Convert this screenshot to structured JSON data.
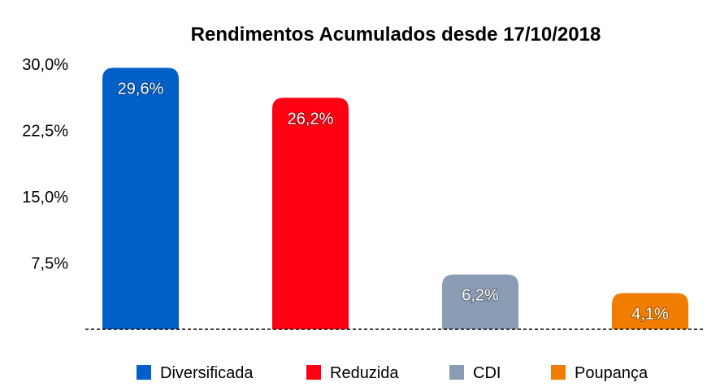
{
  "chart_data": {
    "type": "bar",
    "title": "Rendimentos Acumulados desde 17/10/2018",
    "categories": [
      "Diversificada",
      "Reduzida",
      "CDI",
      "Poupança"
    ],
    "values": [
      29.6,
      26.2,
      6.2,
      4.1
    ],
    "value_labels": [
      "29,6%",
      "26,2%",
      "6,2%",
      "4,1%"
    ],
    "colors": [
      "#0060c8",
      "#ff0013",
      "#8a9bb4",
      "#f07d00"
    ],
    "ylim": [
      0,
      30
    ],
    "yticks": [
      7.5,
      15.0,
      22.5,
      30.0
    ],
    "ytick_labels": [
      "7,5%",
      "15,0%",
      "22,5%",
      "30,0%"
    ],
    "xlabel": "",
    "ylabel": "",
    "grid": false,
    "legend": {
      "position": "bottom",
      "entries": [
        "Diversificada",
        "Reduzida",
        "CDI",
        "Poupança"
      ]
    }
  }
}
